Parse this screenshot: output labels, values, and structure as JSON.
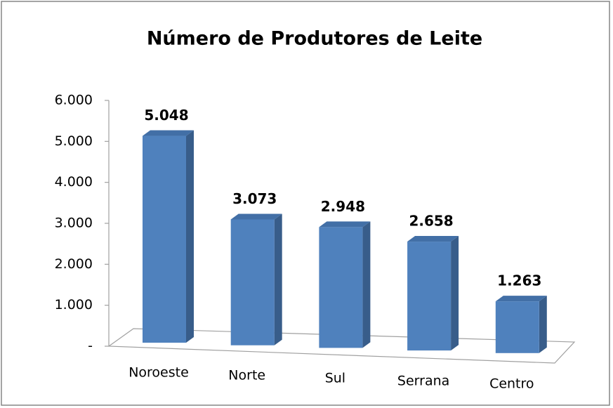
{
  "chart_data": {
    "type": "bar3d",
    "title": "Número de Produtores de Leite",
    "categories": [
      "Noroeste",
      "Norte",
      "Sul",
      "Serrana",
      "Centro"
    ],
    "values": [
      5048,
      3073,
      2948,
      2658,
      1263
    ],
    "value_labels": [
      "5.048",
      "3.073",
      "2.948",
      "2.658",
      "1.263"
    ],
    "color": "#4f81bd",
    "ylim": [
      0,
      6000
    ],
    "yticks": [
      {
        "value": 0,
        "label": "-"
      },
      {
        "value": 1000,
        "label": "1.000"
      },
      {
        "value": 2000,
        "label": "2.000"
      },
      {
        "value": 3000,
        "label": "3.000"
      },
      {
        "value": 4000,
        "label": "4.000"
      },
      {
        "value": 5000,
        "label": "5.000"
      },
      {
        "value": 6000,
        "label": "6.000"
      }
    ]
  }
}
